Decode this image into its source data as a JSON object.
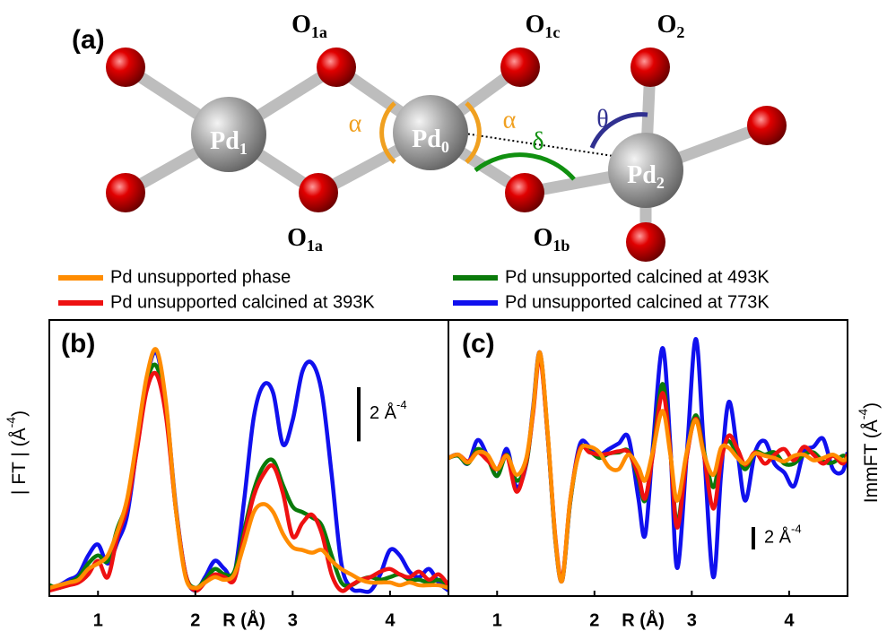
{
  "diagram": {
    "panel_label": "(a)",
    "atoms": [
      {
        "main": "O",
        "sub": "1a"
      },
      {
        "main": "O",
        "sub": "1c"
      },
      {
        "main": "O",
        "sub": "2"
      },
      {
        "main": "Pd",
        "sub": "1"
      },
      {
        "main": "Pd",
        "sub": "0"
      },
      {
        "main": "Pd",
        "sub": "2"
      },
      {
        "main": "O",
        "sub": "1a"
      },
      {
        "main": "O",
        "sub": "1b"
      }
    ],
    "angles": [
      "α",
      "α",
      "δ",
      "θ"
    ]
  },
  "chart_data": [
    {
      "type": "line",
      "panel_label": "(b)",
      "ylabel": [
        "| FT | (Å",
        "-4",
        ")"
      ],
      "xlabel": "R (Å)",
      "xlim": [
        0.5,
        4.6
      ],
      "ylim": [
        -0.2,
        10
      ],
      "xticks": [
        1,
        2,
        3,
        4
      ],
      "scale_bar": {
        "value": 2,
        "label": [
          "2 Å",
          "-4"
        ]
      },
      "x": [
        0.5,
        0.6,
        0.7,
        0.8,
        0.9,
        1.0,
        1.1,
        1.2,
        1.3,
        1.4,
        1.5,
        1.6,
        1.7,
        1.8,
        1.9,
        2.0,
        2.1,
        2.2,
        2.3,
        2.4,
        2.5,
        2.6,
        2.7,
        2.8,
        2.9,
        3.0,
        3.1,
        3.2,
        3.3,
        3.4,
        3.5,
        3.6,
        3.7,
        3.8,
        3.9,
        4.0,
        4.1,
        4.2,
        4.3,
        4.4,
        4.5,
        4.6
      ],
      "series": [
        {
          "name": "Pd unsupported phase",
          "color": "#ff8c00",
          "values": [
            0.1,
            0.2,
            0.3,
            0.4,
            0.8,
            1.0,
            1.3,
            2.2,
            3.4,
            5.6,
            7.9,
            8.9,
            6.9,
            3.0,
            0.5,
            0.1,
            0.3,
            0.5,
            0.4,
            0.6,
            1.7,
            2.9,
            3.2,
            2.9,
            2.1,
            1.6,
            1.5,
            1.4,
            1.5,
            1.1,
            0.8,
            0.6,
            0.4,
            0.3,
            0.3,
            0.3,
            0.2,
            0.3,
            0.2,
            0.2,
            0.2,
            0.1
          ]
        },
        {
          "name": "Pd unsupported calcined at 393K",
          "color": "#ee1111",
          "values": [
            0,
            0.1,
            0.2,
            0.3,
            0.6,
            1.1,
            0.5,
            2.0,
            3.1,
            5.2,
            7.4,
            8.0,
            6.4,
            3.0,
            0.6,
            0,
            0.3,
            0.6,
            0.5,
            0.4,
            2.0,
            3.5,
            4.3,
            4.6,
            3.6,
            2.0,
            2.5,
            2.8,
            2.1,
            0.6,
            0,
            0.2,
            0.4,
            0.5,
            0.7,
            0.8,
            0.6,
            0.5,
            0.7,
            0.4,
            0.6,
            0.2
          ]
        },
        {
          "name": "Pd unsupported calcined at 493K",
          "color": "#0a7a0a",
          "values": [
            0.2,
            0.1,
            0.3,
            0.5,
            1.0,
            1.3,
            1.1,
            2.3,
            3.3,
            5.5,
            7.7,
            8.3,
            6.6,
            3.0,
            0.6,
            0.1,
            0.4,
            0.8,
            0.6,
            0.7,
            2.2,
            3.7,
            4.6,
            4.8,
            3.9,
            3.1,
            2.9,
            2.7,
            2.4,
            1.3,
            0.3,
            0.2,
            0.4,
            0.5,
            0.4,
            0.5,
            0.6,
            0.4,
            0.4,
            0.3,
            0.4,
            0.2
          ]
        },
        {
          "name": "Pd unsupported calcined at 773K",
          "color": "#1010ee",
          "values": [
            0.1,
            0.2,
            0.4,
            0.6,
            1.3,
            1.7,
            1.0,
            1.8,
            2.8,
            5.3,
            7.8,
            8.8,
            6.8,
            3.1,
            0.6,
            0,
            0.5,
            1.1,
            0.8,
            0.6,
            3.3,
            6.4,
            7.6,
            7.3,
            5.4,
            6.3,
            8.1,
            8.4,
            7.3,
            4.3,
            1.0,
            0.1,
            0,
            0,
            0.6,
            1.5,
            1.3,
            0.7,
            0.5,
            0.8,
            0.3,
            0
          ]
        }
      ]
    },
    {
      "type": "line",
      "panel_label": "(c)",
      "ylabel": [
        "ImmFT (Å",
        "-4",
        ")"
      ],
      "xlabel": "R (Å)",
      "xlim": [
        0.5,
        4.6
      ],
      "ylim": [
        -12.3,
        12.3
      ],
      "xticks": [
        1,
        2,
        3,
        4
      ],
      "scale_bar": {
        "value": 2,
        "label": [
          "2 Å",
          "-4"
        ]
      },
      "x": [
        0.5,
        0.6,
        0.7,
        0.8,
        0.9,
        1.0,
        1.1,
        1.2,
        1.3,
        1.37,
        1.44,
        1.52,
        1.6,
        1.67,
        1.75,
        1.85,
        1.95,
        2.05,
        2.15,
        2.25,
        2.35,
        2.45,
        2.52,
        2.6,
        2.7,
        2.78,
        2.85,
        2.95,
        3.04,
        3.12,
        3.22,
        3.3,
        3.38,
        3.47,
        3.55,
        3.65,
        3.75,
        3.85,
        3.95,
        4.05,
        4.15,
        4.25,
        4.35,
        4.45,
        4.55,
        4.6
      ],
      "series": [
        {
          "color": "#ff8c00",
          "values": [
            0,
            0.3,
            -0.4,
            0.5,
            0.3,
            -1.0,
            0.2,
            -1.5,
            0,
            4.3,
            9.4,
            2.2,
            -7.4,
            -10.9,
            -3.8,
            0.6,
            1.0,
            0.5,
            -0.8,
            -1.0,
            0.3,
            -0.8,
            -2.0,
            0.6,
            4.2,
            0.3,
            -3.8,
            0.6,
            3.4,
            0.5,
            -1.5,
            0.9,
            0.9,
            0,
            -0.5,
            0.4,
            0.2,
            0,
            -0.3,
            0.2,
            0.3,
            -0.2,
            0,
            0.3,
            -0.2,
            0
          ]
        },
        {
          "color": "#ee1111",
          "values": [
            0,
            0.3,
            -0.3,
            0.5,
            -0.2,
            -1.0,
            0.2,
            -3.0,
            -0.3,
            4.0,
            9.0,
            2.0,
            -7.2,
            -10.7,
            -3.8,
            0.8,
            0.5,
            0.3,
            0.4,
            0.6,
            0.5,
            -1.5,
            -3.6,
            0.3,
            5.8,
            0.5,
            -6.2,
            0.2,
            3.5,
            0.5,
            -4.5,
            -0.3,
            2.0,
            0.8,
            -0.6,
            0.5,
            -0.5,
            0.3,
            0.8,
            -0.2,
            1.0,
            0.3,
            -0.5,
            0.2,
            -0.5,
            0.3
          ]
        },
        {
          "color": "#0a7a0a",
          "values": [
            0,
            0.2,
            -0.5,
            0.8,
            0,
            -1.6,
            0.3,
            -2.0,
            -0.5,
            4.2,
            9.3,
            2.0,
            -7.4,
            -10.8,
            -4.0,
            0.8,
            0.6,
            0,
            0.4,
            0.5,
            0.6,
            -1.8,
            -3.8,
            0.5,
            6.6,
            0.5,
            -5.8,
            0.3,
            3.8,
            0.8,
            -2.6,
            0.5,
            1.5,
            0.3,
            -1.0,
            0.5,
            0.3,
            0.5,
            -0.5,
            -0.5,
            0.3,
            0.5,
            -0.3,
            -0.4,
            0.2,
            0
          ]
        },
        {
          "color": "#1010ee",
          "values": [
            0,
            0.3,
            -0.5,
            1.6,
            0.2,
            -1.6,
            0.8,
            -2.6,
            -0.5,
            4.5,
            9.4,
            2.0,
            -7.5,
            -10.9,
            -4.0,
            1.2,
            1.0,
            0.3,
            0.8,
            1.3,
            1.8,
            -3.5,
            -6.9,
            1.0,
            9.8,
            1.0,
            -9.8,
            0.5,
            10.6,
            1.5,
            -10.6,
            -1.5,
            5.0,
            0.5,
            -3.8,
            0.5,
            1.5,
            -0.5,
            -1.3,
            -2.5,
            0.5,
            1.0,
            1.7,
            -1.0,
            -1.2,
            0.5
          ]
        }
      ]
    }
  ]
}
